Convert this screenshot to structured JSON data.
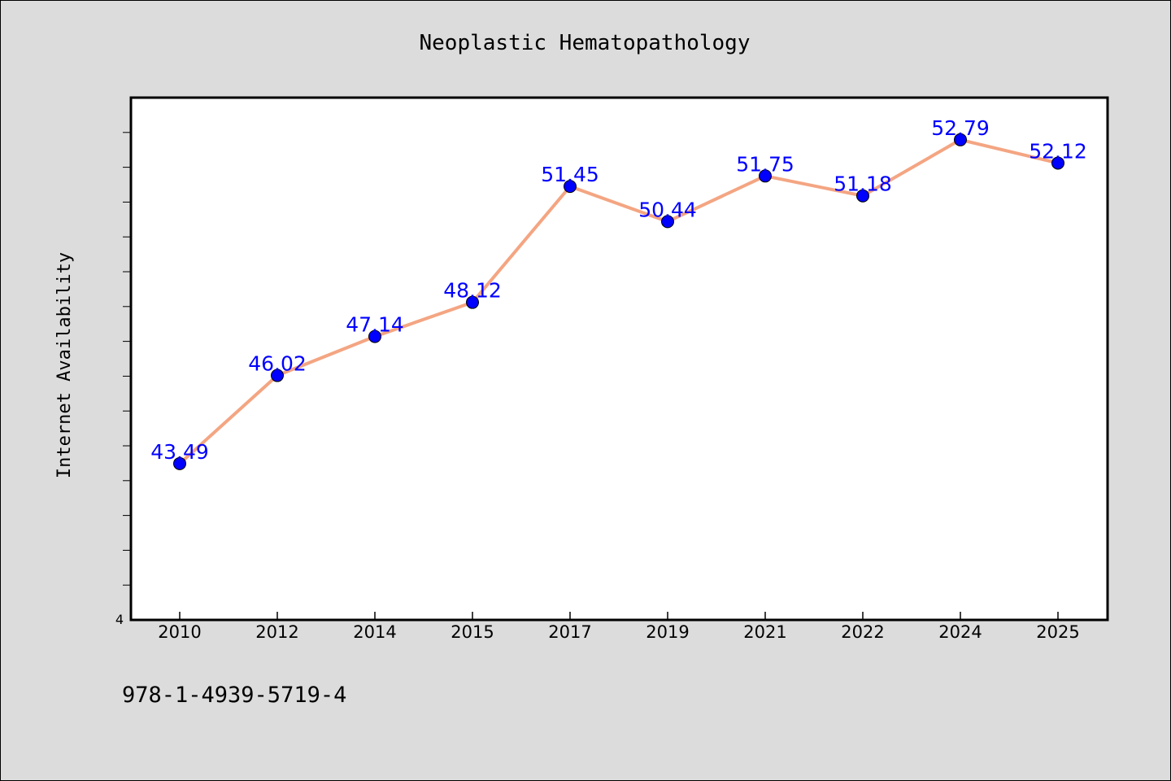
{
  "chart_data": {
    "type": "line",
    "title": "Neoplastic Hematopathology",
    "xlabel": "",
    "ylabel": "Internet Availability",
    "categories": [
      "2010",
      "2012",
      "2014",
      "2015",
      "2017",
      "2019",
      "2021",
      "2022",
      "2024",
      "2025"
    ],
    "series": [
      {
        "values": [
          43.49,
          46.02,
          47.14,
          48.12,
          51.45,
          50.44,
          51.75,
          51.18,
          52.79,
          52.12
        ],
        "labels": [
          "43.49",
          "46.02",
          "47.14",
          "48.12",
          "51.45",
          "50.44",
          "51.75",
          "51.18",
          "52.79",
          "52.12"
        ],
        "line_color": "#f4a582",
        "marker_color": "#0000ff"
      }
    ],
    "ylim": [
      39.0,
      54.0
    ],
    "y_tick_label": "4",
    "grid": false,
    "legend": "none",
    "label_color": "#0000ff"
  },
  "footer": {
    "isbn": "978-1-4939-5719-4"
  }
}
